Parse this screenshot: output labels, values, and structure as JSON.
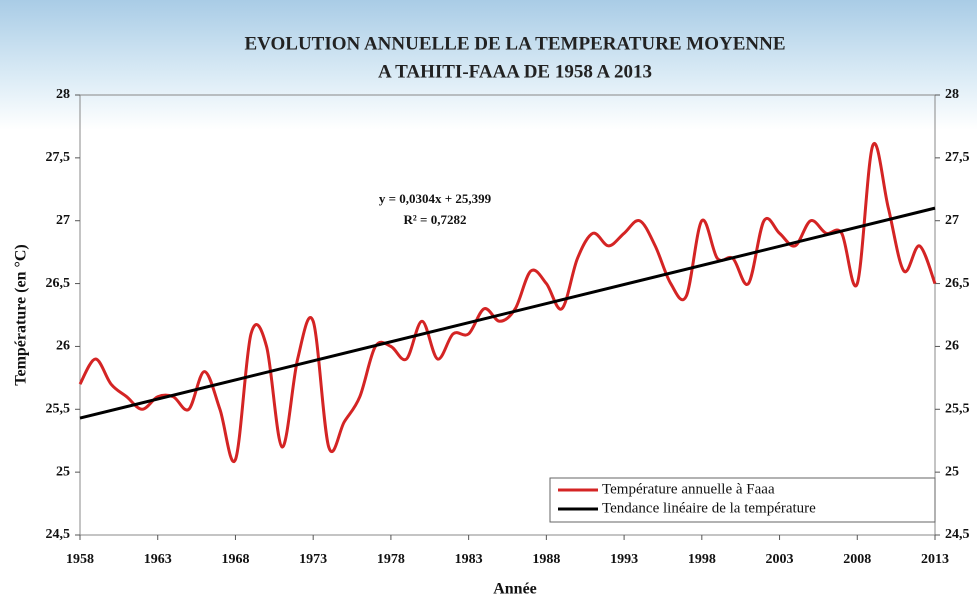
{
  "chart_data": {
    "type": "line",
    "title": "EVOLUTION ANNUELLE DE LA TEMPERATURE MOYENNE",
    "subtitle": "A TAHITI-FAAA DE 1958 A 2013",
    "x_label": "Année",
    "y_label": "Température (en °C)",
    "annotations": [
      "y = 0,0304x + 25,399",
      "R² = 0,7282"
    ],
    "x": [
      1958,
      1959,
      1960,
      1961,
      1962,
      1963,
      1964,
      1965,
      1966,
      1967,
      1968,
      1969,
      1970,
      1971,
      1972,
      1973,
      1974,
      1975,
      1976,
      1977,
      1978,
      1979,
      1980,
      1981,
      1982,
      1983,
      1984,
      1985,
      1986,
      1987,
      1988,
      1989,
      1990,
      1991,
      1992,
      1993,
      1994,
      1995,
      1996,
      1997,
      1998,
      1999,
      2000,
      2001,
      2002,
      2003,
      2004,
      2005,
      2006,
      2007,
      2008,
      2009,
      2010,
      2011,
      2012,
      2013
    ],
    "series": [
      {
        "name": "Température annuelle à Faaa",
        "color": "#d42424",
        "values": [
          25.7,
          25.9,
          25.7,
          25.6,
          25.5,
          25.6,
          25.6,
          25.5,
          25.8,
          25.5,
          25.1,
          26.1,
          26.0,
          25.2,
          25.9,
          26.2,
          25.2,
          25.4,
          25.6,
          26.0,
          26.0,
          25.9,
          26.2,
          25.9,
          26.1,
          26.1,
          26.3,
          26.2,
          26.3,
          26.6,
          26.5,
          26.3,
          26.7,
          26.9,
          26.8,
          26.9,
          27.0,
          26.8,
          26.5,
          26.4,
          27.0,
          26.7,
          26.7,
          26.5,
          27.0,
          26.9,
          26.8,
          27.0,
          26.9,
          26.9,
          26.5,
          27.6,
          27.1,
          26.6,
          26.8,
          26.5
        ]
      },
      {
        "name": "Tendance linéaire de la température",
        "color": "#000000",
        "x": [
          1958,
          2013
        ],
        "values": [
          25.43,
          27.1
        ]
      }
    ],
    "xlim": [
      1958,
      2013
    ],
    "xticks": [
      1958,
      1963,
      1968,
      1973,
      1978,
      1983,
      1988,
      1993,
      1998,
      2003,
      2008,
      2013
    ],
    "ylim": [
      24.5,
      28
    ],
    "yticks": [
      {
        "value": 24.5,
        "label": "24,5"
      },
      25,
      {
        "value": 25.5,
        "label": "25,5"
      },
      26,
      {
        "value": 26.5,
        "label": "26,5"
      },
      27,
      {
        "value": 27.5,
        "label": "27,5"
      },
      28
    ],
    "y2lim": [
      24.5,
      28
    ],
    "y2ticks": [
      {
        "value": 24.5,
        "label": "24,5"
      },
      25,
      {
        "value": 25.5,
        "label": "25,5"
      },
      26,
      {
        "value": 26.5,
        "label": "26,5"
      },
      27,
      {
        "value": 27.5,
        "label": "27,5"
      },
      28
    ],
    "legend": "lower right"
  }
}
